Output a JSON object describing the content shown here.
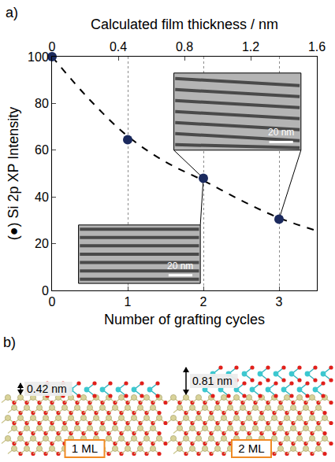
{
  "chart_data": {
    "type": "scatter",
    "panel_label": "a)",
    "x_label": "Number of grafting cycles",
    "x2_label": "Calculated film thickness / nm",
    "y_label": "(●) Si 2p XP Intensity",
    "x": [
      0,
      1,
      2,
      3
    ],
    "values": [
      100,
      64.5,
      48,
      30.5
    ],
    "color": "#1b2a5e",
    "marker": "circle",
    "fit": {
      "x": [
        0,
        0.5,
        1,
        1.5,
        2,
        2.5,
        3,
        3.5
      ],
      "values": [
        100,
        81.5,
        66,
        55,
        47,
        38.5,
        31,
        25.5
      ],
      "line_style": "dash",
      "color": "#000000"
    },
    "xlim": [
      0,
      3.5
    ],
    "xticks": [
      0,
      1,
      2,
      3
    ],
    "x2lim": [
      0,
      1.6
    ],
    "x2ticks": [
      0,
      0.4,
      0.8,
      1.2,
      1.6
    ],
    "ylim": [
      0,
      100
    ],
    "yticks": [
      0,
      20,
      40,
      60,
      80,
      100
    ],
    "grid": true,
    "insets": [
      {
        "scale_bar": "20 nm"
      },
      {
        "scale_bar": "20 nm"
      }
    ]
  },
  "panel_b": {
    "label": "b)",
    "structures": [
      {
        "thickness": "0.42 nm",
        "name": "1 ML"
      },
      {
        "thickness": "0.81 nm",
        "name": "2 ML"
      }
    ]
  }
}
